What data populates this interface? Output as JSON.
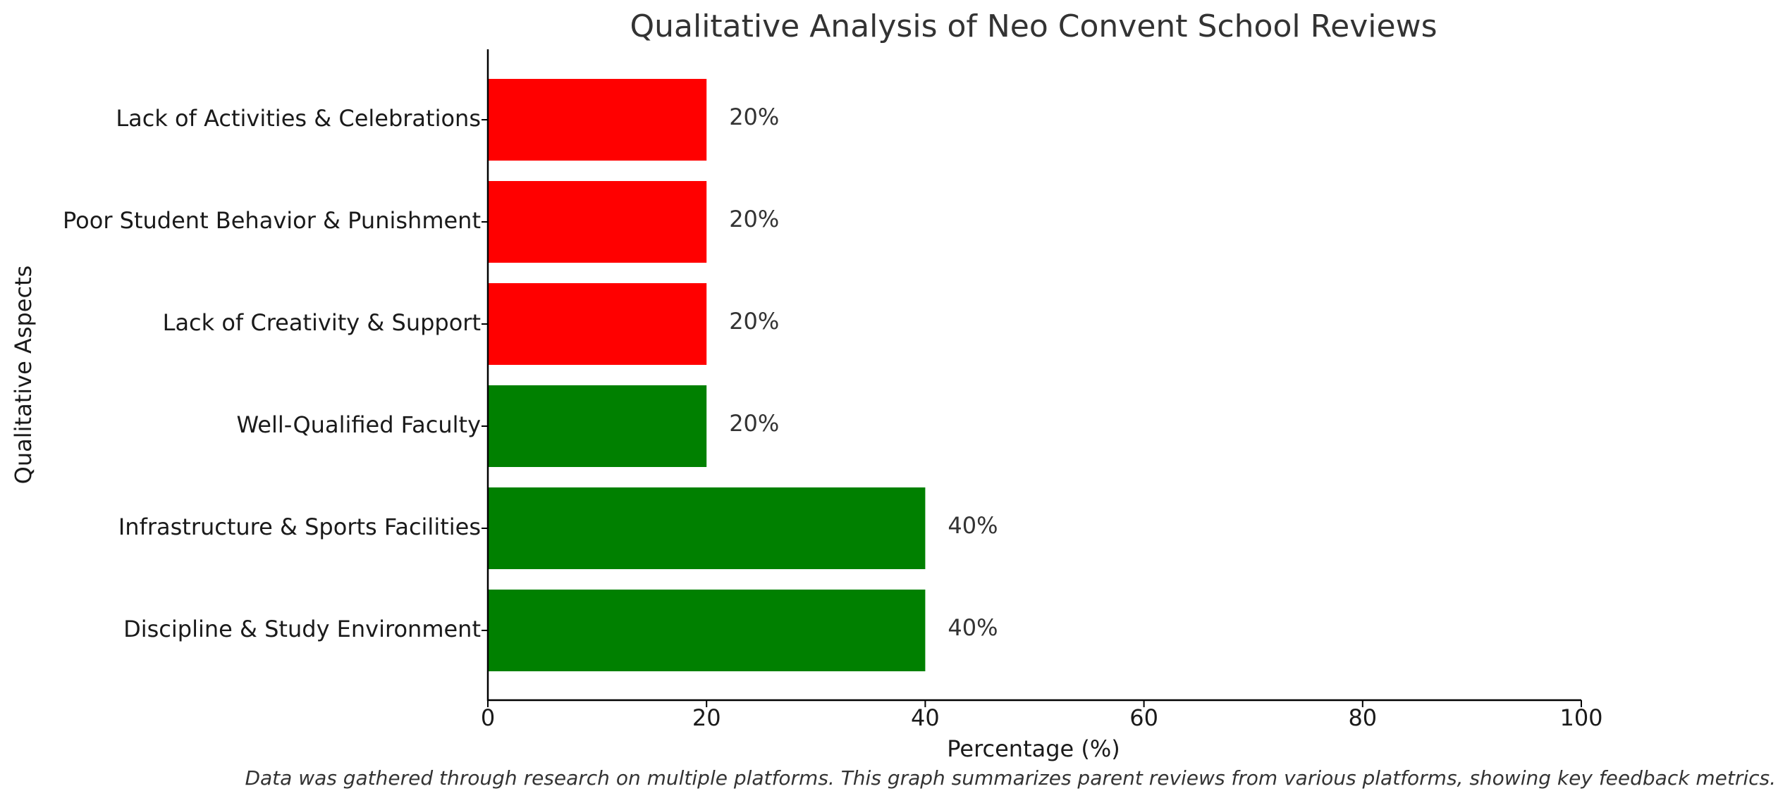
{
  "chart_data": {
    "type": "bar",
    "orientation": "horizontal",
    "title": "Qualitative Analysis of Neo Convent School Reviews",
    "xlabel": "Percentage (%)",
    "ylabel": "Qualitative Aspects",
    "xlim": [
      0,
      100
    ],
    "xticks": [
      "0",
      "20",
      "40",
      "60",
      "80",
      "100"
    ],
    "grid": false,
    "categories": [
      "Discipline & Study Environment",
      "Infrastructure & Sports Facilities",
      "Well-Qualified Faculty",
      "Lack of Creativity & Support",
      "Poor Student Behavior & Punishment",
      "Lack of Activities & Celebrations"
    ],
    "values": [
      40,
      40,
      20,
      20,
      20,
      20
    ],
    "value_labels": [
      "40%",
      "40%",
      "20%",
      "20%",
      "20%",
      "20%"
    ],
    "colors": [
      "#008000",
      "#008000",
      "#008000",
      "#ff0000",
      "#ff0000",
      "#ff0000"
    ],
    "caption": "Data was gathered through research on multiple platforms. This graph summarizes parent reviews from various platforms, showing key feedback metrics."
  }
}
